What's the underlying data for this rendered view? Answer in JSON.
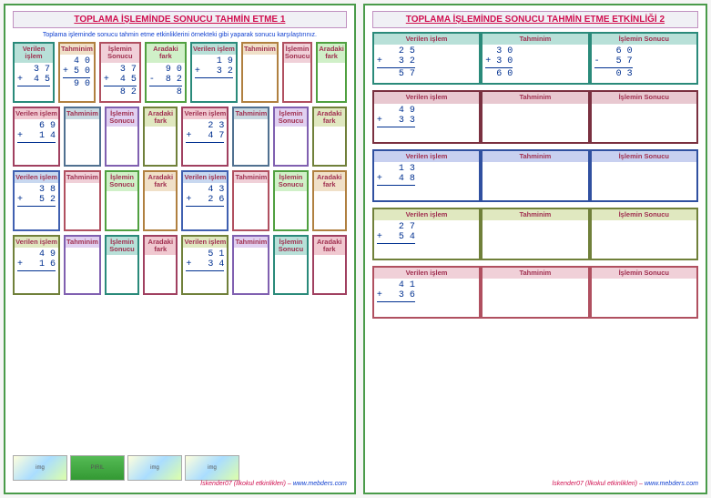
{
  "page1": {
    "title": "TOPLAMA İŞLEMİNDE SONUCU TAHMİN ETME  1",
    "instruction": "Toplama işleminde sonucu tahmin etme etkinliklerini örnekteki gibi yaparak sonucu karşılaştırınız.",
    "headers": {
      "h1": "Verilen işlem",
      "h2": "Tahminim",
      "h3": "İşlemin Sonucu",
      "h4": "Aradaki fark"
    },
    "rows": [
      {
        "left": {
          "a": " 3 7",
          "b": "+  4 5",
          "r": ""
        },
        "worked": {
          "c1a": "4 0",
          "c1b": "+ 5 0",
          "c1r": "9 0",
          "c2a": "3 7",
          "c2b": "+  4 5",
          "c2r": "8 2",
          "c3a": "9 0",
          "c3b": "-  8 2",
          "c3r": "8"
        },
        "right": {
          "a": " 1 9",
          "b": "+   3 2"
        }
      },
      {
        "left": {
          "a": " 6 9",
          "b": "+   1 4"
        },
        "right": {
          "a": " 2 3",
          "b": "+   4 7"
        }
      },
      {
        "left": {
          "a": " 3 8",
          "b": "+   5 2"
        },
        "right": {
          "a": " 4 3",
          "b": "+   2 6"
        }
      },
      {
        "left": {
          "a": " 4 9",
          "b": "+   1 6"
        },
        "right": {
          "a": " 5 1",
          "b": "+   3 4"
        }
      }
    ],
    "credit": "İskender07 (İlkokul etkinlikleri) – ",
    "site": "www.mebders.com"
  },
  "page2": {
    "title": "TOPLAMA İŞLEMİNDE SONUCU TAHMİN ETME ETKİNLİĞİ  2",
    "headers": {
      "h1": "Verilen işlem",
      "h2": "Tahminim",
      "h3": "İşlemin Sonucu"
    },
    "blocks": [
      {
        "cls": "colors-teal",
        "a": " 2 5",
        "b": "+   3 2",
        "r": "5 7",
        "worked": {
          "t1": "3 0",
          "t2": "+ 3 0",
          "t3": "6 0",
          "s1": "6 0",
          "s2": "-   5 7",
          "s3": "0 3"
        }
      },
      {
        "cls": "colors-maroon",
        "a": " 4 9",
        "b": "+   3 3",
        "align": "right"
      },
      {
        "cls": "colors-blue",
        "a": " 1 3",
        "b": "+   4 8"
      },
      {
        "cls": "colors-olive",
        "a": " 2 7",
        "b": "+   5 4",
        "align": "right"
      },
      {
        "cls": "colors-pink",
        "a": " 4 1",
        "b": "+   3 6"
      }
    ],
    "credit": "İskender07 (İlkokul etkinlikleri) – ",
    "site": "www.mebders.com"
  }
}
